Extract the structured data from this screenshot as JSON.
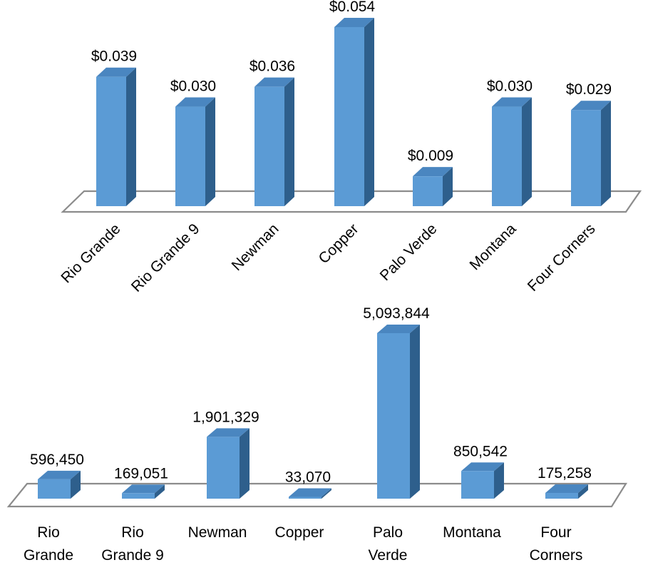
{
  "chart_data": [
    {
      "type": "bar",
      "categories": [
        "Rio Grande",
        "Rio Grande 9",
        "Newman",
        "Copper",
        "Palo Verde",
        "Montana",
        "Four Corners"
      ],
      "values": [
        0.039,
        0.03,
        0.036,
        0.054,
        0.009,
        0.03,
        0.029
      ],
      "data_labels": [
        "$0.039",
        "$0.030",
        "$0.036",
        "$0.054",
        "$0.009",
        "$0.030",
        "$0.029"
      ],
      "style": "3d-column",
      "category_label_orientation": "rotated-45",
      "ylim": [
        0,
        0.054
      ]
    },
    {
      "type": "bar",
      "categories": [
        [
          "Rio",
          "Grande"
        ],
        [
          "Rio",
          "Grande 9"
        ],
        [
          "Newman"
        ],
        [
          "Copper"
        ],
        [
          "Palo",
          "Verde"
        ],
        [
          "Montana"
        ],
        [
          "Four",
          "Corners"
        ]
      ],
      "values": [
        596450,
        169051,
        1901329,
        33070,
        5093844,
        850542,
        175258
      ],
      "data_labels": [
        "596,450",
        "169,051",
        "1,901,329",
        "33,070",
        "5,093,844",
        "850,542",
        "175,258"
      ],
      "style": "3d-column",
      "category_label_orientation": "horizontal",
      "ylim": [
        0,
        5093844
      ]
    }
  ],
  "colors": {
    "bar_front": "#5b9bd5",
    "bar_top": "#4a86c0",
    "bar_side": "#2e5f8c",
    "floor_stroke": "#8c8c8c"
  }
}
